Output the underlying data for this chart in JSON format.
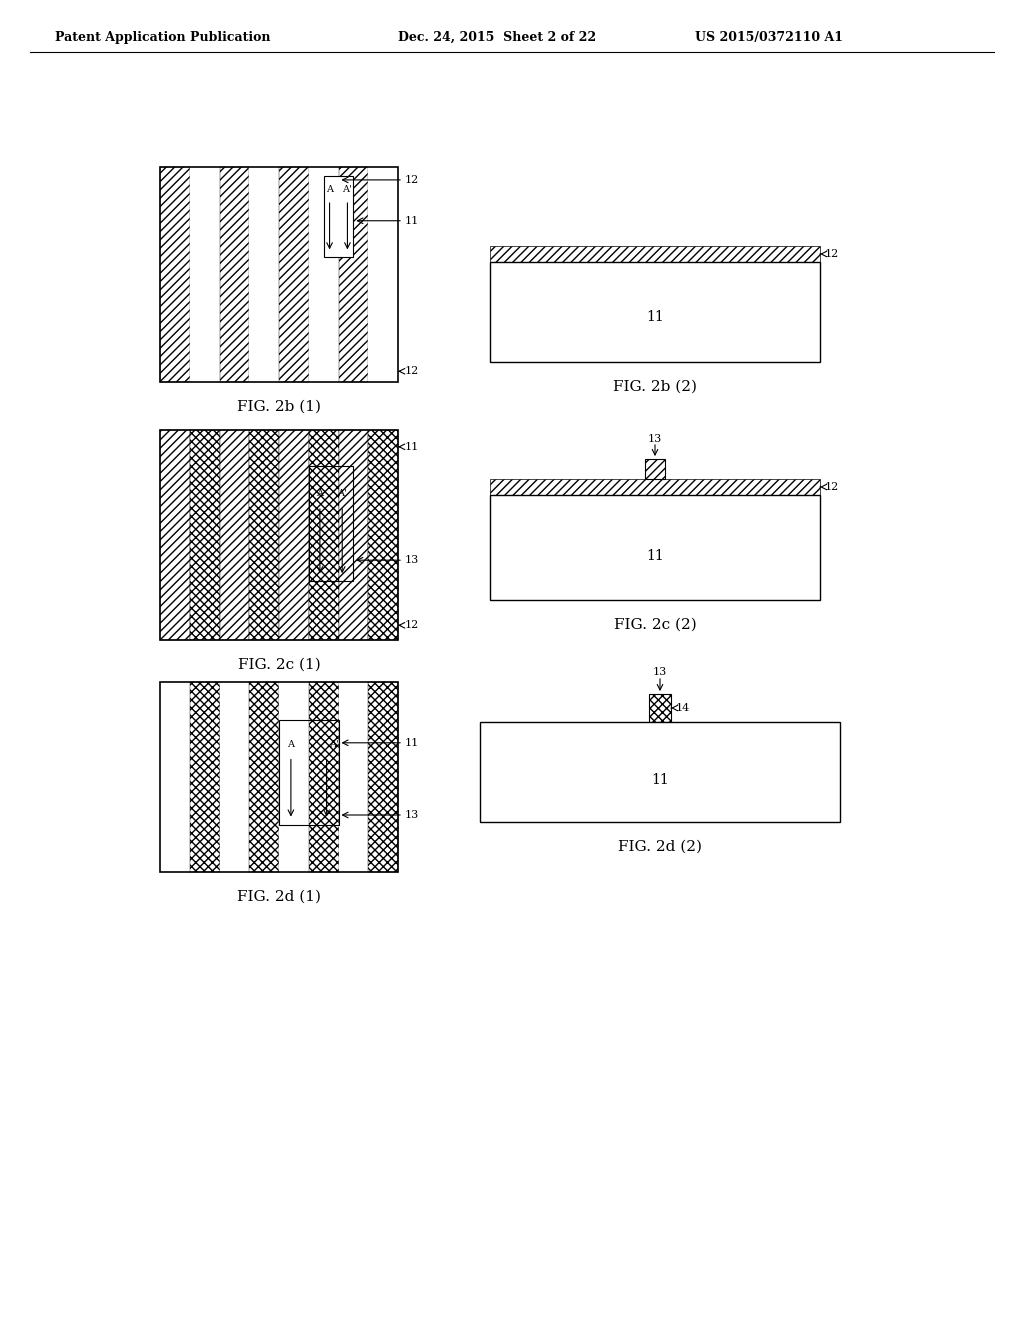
{
  "bg_color": "#ffffff",
  "header_left": "Patent Application Publication",
  "header_mid": "Dec. 24, 2015  Sheet 2 of 22",
  "header_right": "US 2015/0372110 A1",
  "fig_labels": [
    "FIG. 2b (1)",
    "FIG. 2b (2)",
    "FIG. 2c (1)",
    "FIG. 2c (2)",
    "FIG. 2d (1)",
    "FIG. 2d (2)"
  ]
}
